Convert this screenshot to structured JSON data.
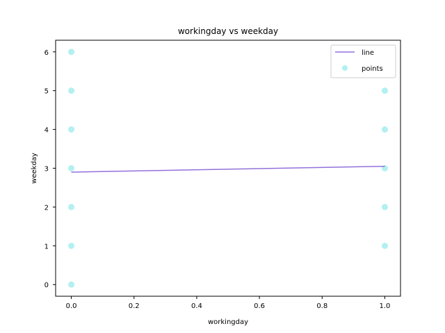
{
  "chart_data": {
    "type": "scatter",
    "title": "workingday vs weekday",
    "xlabel": "workingday",
    "ylabel": "weekday",
    "xlim": [
      -0.05,
      1.05
    ],
    "ylim": [
      -0.3,
      6.3
    ],
    "xticks": [
      0.0,
      0.2,
      0.4,
      0.6,
      0.8,
      1.0
    ],
    "xtick_labels": [
      "0.0",
      "0.2",
      "0.4",
      "0.6",
      "0.8",
      "1.0"
    ],
    "yticks": [
      0,
      1,
      2,
      3,
      4,
      5,
      6
    ],
    "ytick_labels": [
      "0",
      "1",
      "2",
      "3",
      "4",
      "5",
      "6"
    ],
    "grid": false,
    "legend_position": "top-right",
    "series": [
      {
        "name": "line",
        "kind": "line",
        "color": "#9370db",
        "x": [
          0,
          1
        ],
        "y": [
          2.9,
          3.05
        ]
      },
      {
        "name": "points",
        "kind": "scatter",
        "color": "#00ced1",
        "x": [
          0,
          0,
          0,
          0,
          0,
          0,
          0,
          1,
          1,
          1,
          1,
          1
        ],
        "y": [
          0,
          1,
          2,
          3,
          4,
          5,
          6,
          1,
          2,
          3,
          4,
          5
        ]
      }
    ]
  }
}
